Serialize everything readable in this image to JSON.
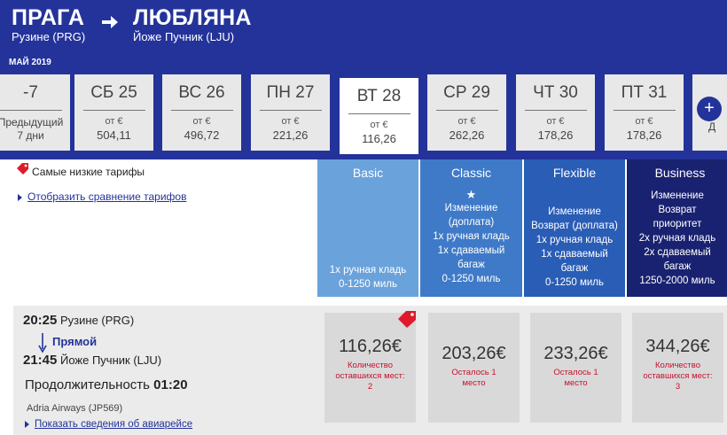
{
  "route": {
    "from_city": "ПРАГА",
    "from_airport": "Рузине (PRG)",
    "to_city": "ЛЮБЛЯНА",
    "to_airport": "Йоже Пучник (LJU)",
    "arrow_icon": "right-arrow-icon"
  },
  "month": "МАЙ 2019",
  "dates": {
    "prev": {
      "label": "-7",
      "line1": "Предыдущий",
      "line2": "7 дни"
    },
    "days": [
      {
        "day": "СБ 25",
        "from": "от €",
        "price": "504,11"
      },
      {
        "day": "ВС 26",
        "from": "от €",
        "price": "496,72"
      },
      {
        "day": "ПН 27",
        "from": "от €",
        "price": "221,26"
      },
      {
        "day": "ВТ 28",
        "from": "от €",
        "price": "116,26",
        "selected": true
      },
      {
        "day": "СР 29",
        "from": "от €",
        "price": "262,26"
      },
      {
        "day": "ЧТ 30",
        "from": "от €",
        "price": "178,26"
      },
      {
        "day": "ПТ 31",
        "from": "от €",
        "price": "178,26"
      }
    ],
    "next": {
      "icon": "plus-circle-icon",
      "glyph": "+",
      "partial_text": "Д"
    }
  },
  "legend": {
    "lowest_label": "Самые низкие тарифы",
    "lowest_icon": "price-tag-icon",
    "compare_link": "Отобразить сравнение тарифов"
  },
  "fares": [
    {
      "name": "Basic",
      "features": [
        "1х ручная кладь",
        "0-1250 миль"
      ],
      "color": "#6aa2db"
    },
    {
      "name": "Classic",
      "star": "★",
      "features": [
        "Изменение",
        "(доплата)",
        "1х ручная кладь",
        "1х сдаваемый",
        "багаж",
        "0-1250 миль"
      ],
      "color": "#3f7ac8"
    },
    {
      "name": "Flexible",
      "features": [
        "Изменение",
        "Возврат (доплата)",
        "1х ручная кладь",
        "1х сдаваемый",
        "багаж",
        "0-1250 миль"
      ],
      "color": "#2a5db5"
    },
    {
      "name": "Business",
      "features": [
        "Изменение",
        "Возврат",
        "приоритет",
        "2х ручная кладь",
        "2х сдаваемый",
        "багаж",
        "1250-2000 миль"
      ],
      "color": "#192270"
    }
  ],
  "flight": {
    "dep_time": "20:25",
    "dep_airport": "Рузине (PRG)",
    "direct_label": "Прямой",
    "arr_time": "21:45",
    "arr_airport": "Йоже Пучник (LJU)",
    "duration_label": "Продолжительность",
    "duration_value": "01:20",
    "carrier": "Adria Airways (JP569)",
    "details_link": "Показать сведения об авиарейсе",
    "prices": [
      {
        "amount": "116,26€",
        "note1": "Количество",
        "note2": "оставшихся мест:",
        "note3": "2",
        "lowest": true
      },
      {
        "amount": "203,26€",
        "note1": "Осталось 1",
        "note2": "место",
        "note3": ""
      },
      {
        "amount": "233,26€",
        "note1": "Осталось 1",
        "note2": "место",
        "note3": ""
      },
      {
        "amount": "344,26€",
        "note1": "Количество",
        "note2": "оставшихся мест:",
        "note3": "3"
      }
    ]
  },
  "colors": {
    "header": "#24339a",
    "accent": "#24339a",
    "alert": "#c8102e"
  }
}
